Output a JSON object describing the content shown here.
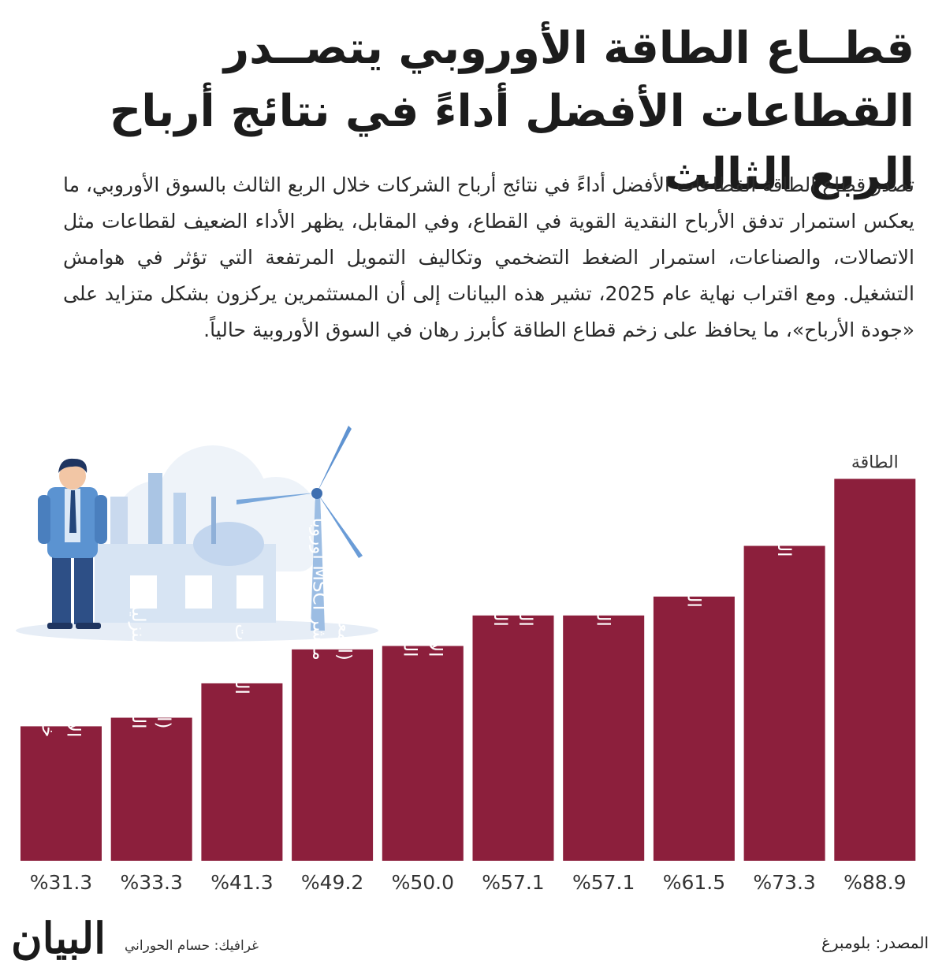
{
  "header": {
    "title": "قطــاع الطاقة الأوروبي يتصــدر القطاعات الأفضل أداءً في نتائج أرباح الربع الثالث",
    "body": "تصدر قطاع الطاقة القطاعات الأفضل أداءً في نتائج أرباح الشركات خلال الربع الثالث بالسوق الأوروبي، ما يعكس استمرار تدفق الأرباح النقدية القوية في القطاع، وفي المقابل، يظهر الأداء الضعيف لقطاعات مثل الاتصالات، والصناعات، استمرار الضغط التضخمي وتكاليف التمويل المرتفعة التي تؤثر في هوامش التشغيل. ومع اقتراب نهاية عام 2025، تشير هذه البيانات إلى أن المستثمرين يركزون بشكل متزايد على «جودة الأرباح»، ما يحافظ على زخم قطاع الطاقة كأبرز رهان في السوق الأوروبية حالياً."
  },
  "chart_data": {
    "type": "bar",
    "title": "",
    "xlabel": "",
    "ylabel": "",
    "ylim": [
      0,
      100
    ],
    "grid": false,
    "bar_color": "#8c1f3c",
    "categories": [
      [
        "خدمات",
        "الاتصالات"
      ],
      [
        "الخدمات المنزلية",
        "(المرافق)"
      ],
      [
        "الصناعات"
      ],
      [
        "مؤشر MSCI أوروبا",
        "(المعدل العام)"
      ],
      [
        "السلع الاستهلاكية",
        "الأساسية"
      ],
      [
        "السلع الاستهلاكية",
        "الترفيهية"
      ],
      [
        "الرعاية الصحية"
      ],
      [
        "الخدمات المالية"
      ],
      [
        "التكنولوجيا"
      ],
      [
        "الطاقة"
      ]
    ],
    "values": [
      31.3,
      33.3,
      41.3,
      49.2,
      50.0,
      57.1,
      57.1,
      61.5,
      73.3,
      88.9
    ],
    "value_labels": [
      "%31.3",
      "%33.3",
      "%41.3",
      "%49.2",
      "%50.0",
      "%57.1",
      "%57.1",
      "%61.5",
      "%73.3",
      "%88.9"
    ]
  },
  "illustration": {
    "icons": [
      "businessman-icon",
      "factory-icon",
      "wind-turbine-icon",
      "cloud-icon"
    ]
  },
  "footer": {
    "logo": "البيان",
    "credit": "غرافيك: حسام الحوراني",
    "source": "المصدر: بلومبرغ"
  }
}
